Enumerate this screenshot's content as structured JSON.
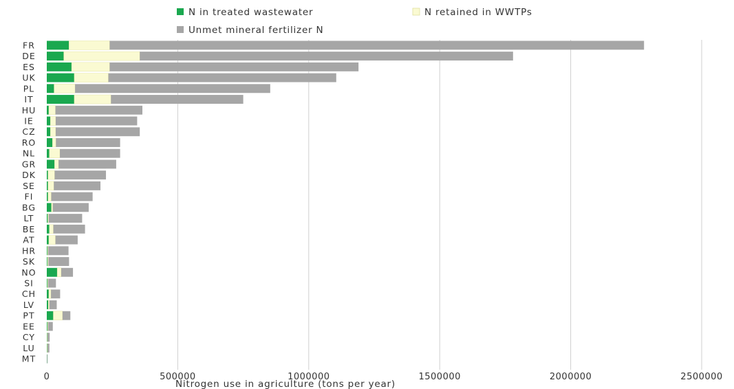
{
  "chart_data": {
    "type": "bar",
    "orientation": "horizontal",
    "stacked": true,
    "title": "",
    "xlabel": "Nitrogen use in agriculture (tons per year)",
    "ylabel": "",
    "xlim": [
      0,
      2500000
    ],
    "xticks": [
      0,
      500000,
      1000000,
      1500000,
      2000000,
      2500000
    ],
    "grid": true,
    "legend_position": "top",
    "categories": [
      "FR",
      "DE",
      "ES",
      "UK",
      "PL",
      "IT",
      "HU",
      "IE",
      "CZ",
      "RO",
      "NL",
      "GR",
      "DK",
      "SE",
      "FI",
      "BG",
      "LT",
      "BE",
      "AT",
      "HR",
      "SK",
      "NO",
      "SI",
      "CH",
      "LV",
      "PT",
      "EE",
      "CY",
      "LU",
      "MT"
    ],
    "series": [
      {
        "name": "N in treated wastewater",
        "color": "#1aa84f",
        "values": [
          85000,
          65000,
          95000,
          105000,
          28000,
          105000,
          8000,
          14000,
          14000,
          22000,
          10000,
          30000,
          5000,
          5000,
          5000,
          18000,
          4000,
          10000,
          8000,
          3000,
          3000,
          40000,
          3000,
          8000,
          6000,
          25000,
          3000,
          2000,
          2000,
          1000
        ]
      },
      {
        "name": "N retained in WWTPs",
        "color": "#fafad2",
        "values": [
          155000,
          290000,
          145000,
          130000,
          80000,
          140000,
          25000,
          20000,
          20000,
          13000,
          40000,
          15000,
          25000,
          22000,
          12000,
          5000,
          3000,
          15000,
          25000,
          2000,
          3000,
          15000,
          2000,
          8000,
          4000,
          35000,
          2000,
          1000,
          1000,
          0
        ]
      },
      {
        "name": "Unmet mineral fertilizer N",
        "color": "#a6a6a6",
        "values": [
          2040000,
          1425000,
          950000,
          870000,
          745000,
          505000,
          332000,
          311000,
          321000,
          245000,
          230000,
          220000,
          196000,
          178000,
          158000,
          137000,
          128000,
          121000,
          85000,
          78000,
          79000,
          45000,
          30000,
          35000,
          28000,
          30000,
          18000,
          8000,
          7000,
          2000
        ]
      }
    ]
  }
}
